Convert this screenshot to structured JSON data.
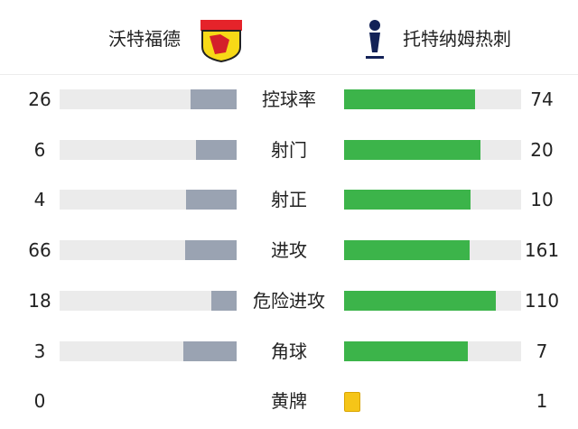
{
  "header": {
    "home_team": "沃特福德",
    "away_team": "托特纳姆热刺"
  },
  "stats": [
    {
      "label": "控球率",
      "home": 26,
      "away": 74
    },
    {
      "label": "射门",
      "home": 6,
      "away": 20
    },
    {
      "label": "射正",
      "home": 4,
      "away": 10
    },
    {
      "label": "进攻",
      "home": 66,
      "away": 161
    },
    {
      "label": "危险进攻",
      "home": 18,
      "away": 110
    },
    {
      "label": "角球",
      "home": 3,
      "away": 7
    }
  ],
  "cards": {
    "label": "黄牌",
    "home": 0,
    "away": 1
  }
}
